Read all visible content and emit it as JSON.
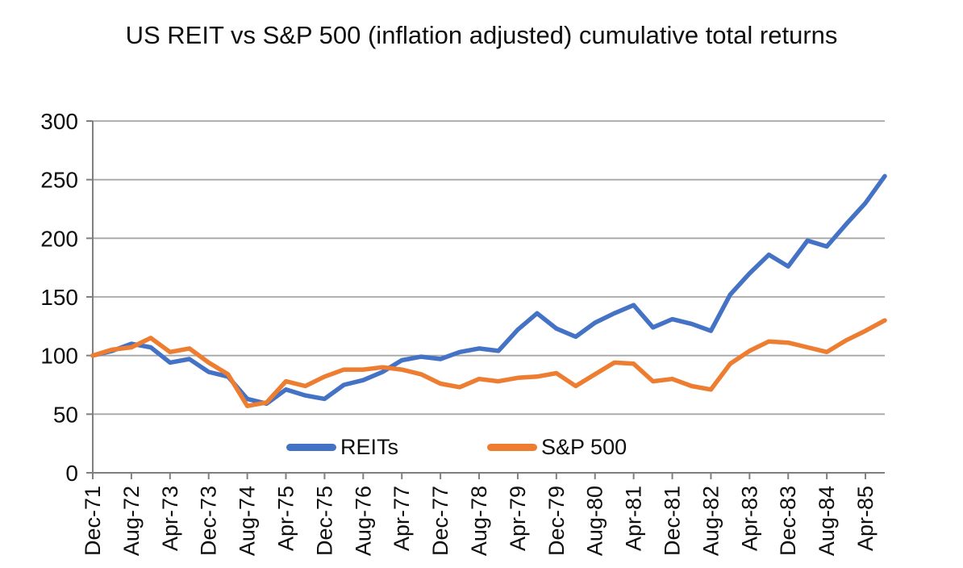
{
  "chart_data": {
    "type": "line",
    "title": "US REIT vs S&P 500 (inflation adjusted) cumulative total returns",
    "categories": [
      "Dec-71",
      "Apr-72",
      "Aug-72",
      "Dec-72",
      "Apr-73",
      "Aug-73",
      "Dec-73",
      "Apr-74",
      "Aug-74",
      "Dec-74",
      "Apr-75",
      "Aug-75",
      "Dec-75",
      "Apr-76",
      "Aug-76",
      "Dec-76",
      "Apr-77",
      "Aug-77",
      "Dec-77",
      "Apr-78",
      "Aug-78",
      "Dec-78",
      "Apr-79",
      "Aug-79",
      "Dec-79",
      "Apr-80",
      "Aug-80",
      "Dec-80",
      "Apr-81",
      "Aug-81",
      "Dec-81",
      "Apr-82",
      "Aug-82",
      "Dec-82",
      "Apr-83",
      "Aug-83",
      "Dec-83",
      "Apr-84",
      "Aug-84",
      "Dec-84",
      "Apr-85",
      "Aug-85"
    ],
    "x_tick_labels": [
      "Dec-71",
      "Aug-72",
      "Apr-73",
      "Dec-73",
      "Aug-74",
      "Apr-75",
      "Dec-75",
      "Aug-76",
      "Apr-77",
      "Dec-77",
      "Aug-78",
      "Apr-79",
      "Dec-79",
      "Aug-80",
      "Apr-81",
      "Dec-81",
      "Aug-82",
      "Apr-83",
      "Dec-83",
      "Aug-84",
      "Apr-85"
    ],
    "x_label_interval": 2,
    "series": [
      {
        "name": "REITs",
        "color": "#4472C4",
        "values": [
          100,
          104,
          110,
          107,
          94,
          97,
          86,
          82,
          63,
          59,
          71,
          66,
          63,
          75,
          79,
          86,
          96,
          99,
          97,
          103,
          106,
          104,
          122,
          136,
          123,
          116,
          128,
          136,
          143,
          124,
          131,
          127,
          121,
          152,
          170,
          186,
          176,
          198,
          193,
          212,
          230,
          253
        ]
      },
      {
        "name": "S&P 500",
        "color": "#ED7D31",
        "values": [
          100,
          105,
          107,
          115,
          103,
          106,
          94,
          84,
          57,
          60,
          78,
          74,
          82,
          88,
          88,
          90,
          88,
          84,
          76,
          73,
          80,
          78,
          81,
          82,
          85,
          74,
          84,
          94,
          93,
          78,
          80,
          74,
          71,
          93,
          104,
          112,
          111,
          107,
          103,
          113,
          121,
          130
        ]
      }
    ],
    "ylim": [
      0,
      300
    ],
    "yticks": [
      0,
      50,
      100,
      150,
      200,
      250,
      300
    ],
    "grid": "horizontal-only",
    "legend_position": "bottom-center-inside",
    "axis_color": "#7f7f7f",
    "gridline_color": "#a6a6a6",
    "text_color": "#0f0f0f"
  }
}
